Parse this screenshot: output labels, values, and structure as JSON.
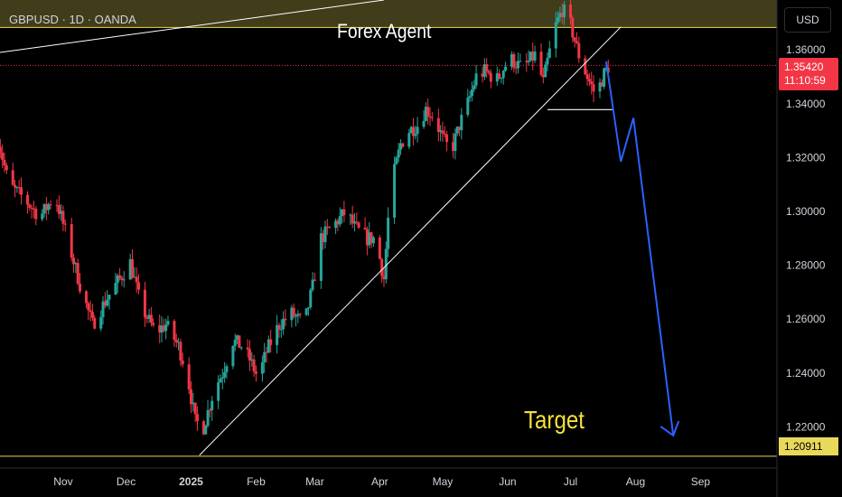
{
  "header": {
    "symbol": "GBPUSD · 1D · OANDA",
    "currency": "USD"
  },
  "current_price": {
    "price": "1.35420",
    "countdown": "11:10:59",
    "value": 1.3542
  },
  "support_price": {
    "label": "1.20911",
    "value": 1.20911
  },
  "annotations": {
    "zone_label": "Forex Agent",
    "target_label": "Target"
  },
  "colors": {
    "up": "#26a69a",
    "down": "#f23645",
    "zone": "#e8d95a",
    "projection": "#2962ff",
    "background": "#000000",
    "text": "#d1d4dc"
  },
  "chart_data": {
    "type": "candlestick",
    "title": "",
    "xlabel": "",
    "ylabel": "",
    "ylim": [
      1.198,
      1.3785
    ],
    "yticks": [
      "1.36000",
      "1.34000",
      "1.32000",
      "1.30000",
      "1.28000",
      "1.26000",
      "1.24000",
      "1.22000"
    ],
    "ytick_values": [
      1.36,
      1.34,
      1.32,
      1.3,
      1.28,
      1.26,
      1.24,
      1.22
    ],
    "xticks": [
      "Nov",
      "Dec",
      "2025",
      "Feb",
      "Mar",
      "Apr",
      "May",
      "Jun",
      "Jul",
      "Aug",
      "Sep"
    ],
    "xtick_days": [
      31,
      61,
      92,
      123,
      151,
      182,
      212,
      243,
      273,
      304,
      335
    ],
    "x_start_day": 0,
    "x_end_day": 365,
    "resistance_zone": [
      1.3683,
      1.3825
    ],
    "neckline": {
      "from": [
        262,
        1.3378
      ],
      "to": [
        293,
        1.3378
      ]
    },
    "trendline": {
      "from": [
        96,
        1.2095
      ],
      "to": [
        297,
        1.3685
      ]
    },
    "projection_path": [
      [
        290,
        1.3557
      ],
      [
        297,
        1.3185
      ],
      [
        303,
        1.3347
      ],
      [
        322,
        1.2168
      ]
    ],
    "ohlc_keypoints": [
      [
        0,
        1.327
      ],
      [
        5,
        1.31
      ],
      [
        12,
        1.305
      ],
      [
        20,
        1.298
      ],
      [
        27,
        1.306
      ],
      [
        33,
        1.29
      ],
      [
        40,
        1.27
      ],
      [
        45,
        1.258
      ],
      [
        52,
        1.268
      ],
      [
        58,
        1.275
      ],
      [
        63,
        1.281
      ],
      [
        68,
        1.265
      ],
      [
        75,
        1.255
      ],
      [
        80,
        1.258
      ],
      [
        86,
        1.25
      ],
      [
        90,
        1.24
      ],
      [
        94,
        1.222
      ],
      [
        98,
        1.22
      ],
      [
        103,
        1.234
      ],
      [
        107,
        1.24
      ],
      [
        112,
        1.252
      ],
      [
        116,
        1.25
      ],
      [
        120,
        1.245
      ],
      [
        124,
        1.238
      ],
      [
        128,
        1.248
      ],
      [
        134,
        1.258
      ],
      [
        140,
        1.262
      ],
      [
        146,
        1.258
      ],
      [
        150,
        1.272
      ],
      [
        154,
        1.29
      ],
      [
        160,
        1.295
      ],
      [
        166,
        1.3
      ],
      [
        170,
        1.294
      ],
      [
        176,
        1.29
      ],
      [
        180,
        1.29
      ],
      [
        184,
        1.275
      ],
      [
        187,
        1.308
      ],
      [
        192,
        1.325
      ],
      [
        196,
        1.33
      ],
      [
        200,
        1.332
      ],
      [
        204,
        1.338
      ],
      [
        208,
        1.335
      ],
      [
        212,
        1.327
      ],
      [
        216,
        1.322
      ],
      [
        220,
        1.332
      ],
      [
        224,
        1.34
      ],
      [
        228,
        1.35
      ],
      [
        232,
        1.352
      ],
      [
        238,
        1.349
      ],
      [
        244,
        1.357
      ],
      [
        250,
        1.353
      ],
      [
        256,
        1.358
      ],
      [
        260,
        1.348
      ],
      [
        265,
        1.367
      ],
      [
        269,
        1.375
      ],
      [
        272,
        1.372
      ],
      [
        277,
        1.358
      ],
      [
        281,
        1.35
      ],
      [
        285,
        1.343
      ],
      [
        289,
        1.351
      ],
      [
        292,
        1.355
      ]
    ]
  }
}
